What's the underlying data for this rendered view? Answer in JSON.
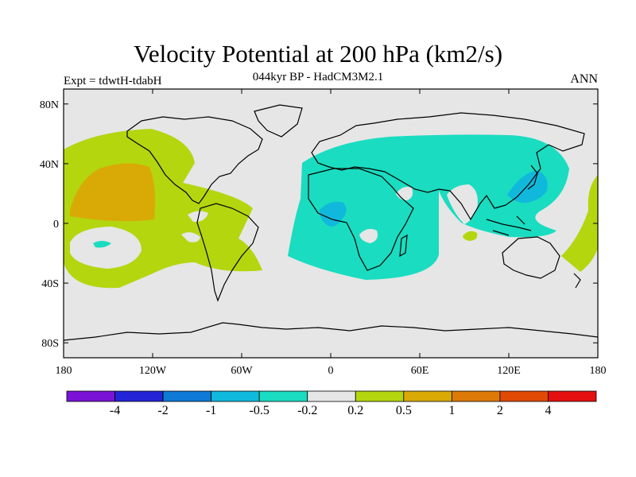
{
  "title": "Velocity Potential at 200 hPa (km2/s)",
  "subtitle": "044kyr BP - HadCM3M2.1",
  "experiment_label": "Expt = tdwtH-tdabH",
  "season_label": "ANN",
  "map": {
    "projection": "cylindrical-equidistant",
    "lon_range": [
      -180,
      180
    ],
    "lat_range": [
      -90,
      90
    ],
    "background_color": "#e6e6e6",
    "x_ticks": [
      {
        "lon": -180,
        "label": "180"
      },
      {
        "lon": -120,
        "label": "120W"
      },
      {
        "lon": -60,
        "label": "60W"
      },
      {
        "lon": 0,
        "label": "0"
      },
      {
        "lon": 60,
        "label": "60E"
      },
      {
        "lon": 120,
        "label": "120E"
      },
      {
        "lon": 180,
        "label": "180"
      }
    ],
    "y_ticks": [
      {
        "lat": 80,
        "label": "80N"
      },
      {
        "lat": 40,
        "label": "40N"
      },
      {
        "lat": 0,
        "label": "0"
      },
      {
        "lat": -40,
        "label": "40S"
      },
      {
        "lat": -80,
        "label": "80S"
      }
    ]
  },
  "colorbar": {
    "colors": [
      "#7a13d6",
      "#2424d6",
      "#0f79d6",
      "#10b9dc",
      "#1adcc0",
      "#e6e6e6",
      "#b3d60f",
      "#d9aa06",
      "#dd7a07",
      "#e04a05",
      "#e41010"
    ],
    "labels": [
      "-4",
      "-2",
      "-1",
      "-0.5",
      "-0.2",
      "0.2",
      "0.5",
      "1",
      "2",
      "4"
    ]
  }
}
